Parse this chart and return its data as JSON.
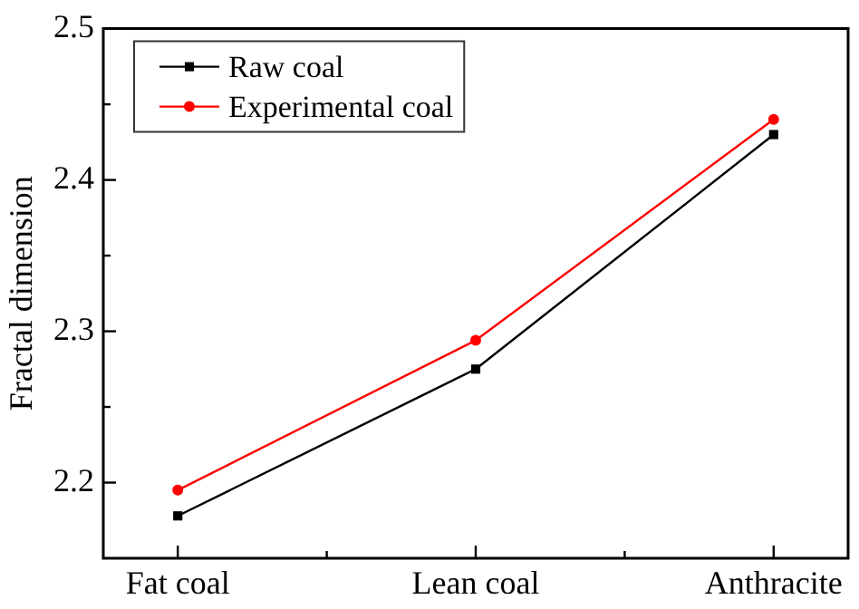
{
  "chart_data": {
    "type": "line",
    "ylabel": "Fractal dimension",
    "categories": [
      "Fat coal",
      "Lean coal",
      "Anthracite"
    ],
    "series": [
      {
        "name": "Raw coal",
        "color": "#000000",
        "marker": "square",
        "values": [
          2.178,
          2.275,
          2.43
        ]
      },
      {
        "name": "Experimental coal",
        "color": "#ff0000",
        "marker": "circle",
        "values": [
          2.195,
          2.294,
          2.44
        ]
      }
    ],
    "ylim": [
      2.15,
      2.5
    ],
    "yticks": [
      2.2,
      {
        "value": 2.25,
        "label": null
      },
      2.3,
      {
        "value": 2.35,
        "label": null
      },
      2.4,
      {
        "value": 2.45,
        "label": null
      },
      2.5
    ],
    "legend": "top left",
    "line_style": "solid"
  }
}
